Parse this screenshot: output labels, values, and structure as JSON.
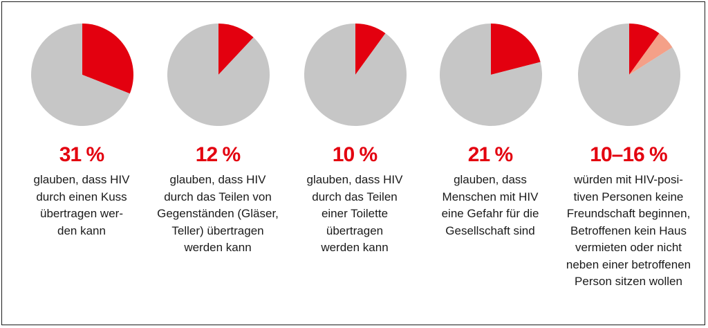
{
  "chart_data": [
    {
      "type": "pie",
      "value_label": "31 %",
      "description": "glauben, dass HIV\ndurch einen Kuss\nübertragen wer-\nden kann",
      "slices": [
        {
          "value": 31,
          "color": "#e3000f"
        },
        {
          "value": 69,
          "color": "#c6c6c6"
        }
      ]
    },
    {
      "type": "pie",
      "value_label": "12 %",
      "description": "glauben, dass HIV\ndurch das Teilen von\nGegenständen (Gläser,\nTeller) übertragen\nwerden kann",
      "slices": [
        {
          "value": 12,
          "color": "#e3000f"
        },
        {
          "value": 88,
          "color": "#c6c6c6"
        }
      ]
    },
    {
      "type": "pie",
      "value_label": "10 %",
      "description": "glauben, dass HIV\ndurch das Teilen\neiner Toilette\nübertragen\nwerden kann",
      "slices": [
        {
          "value": 10,
          "color": "#e3000f"
        },
        {
          "value": 90,
          "color": "#c6c6c6"
        }
      ]
    },
    {
      "type": "pie",
      "value_label": "21 %",
      "description": "glauben, dass\nMenschen mit HIV\neine Gefahr für die\nGesellschaft sind",
      "slices": [
        {
          "value": 21,
          "color": "#e3000f"
        },
        {
          "value": 79,
          "color": "#c6c6c6"
        }
      ]
    },
    {
      "type": "pie",
      "value_label": "10–16 %",
      "description": "würden mit HIV-posi-\ntiven Personen keine\nFreundschaft beginnen,\nBetroffenen kein Haus\nvermieten oder nicht\nneben einer betroffenen\nPerson sitzen wollen",
      "slices": [
        {
          "value": 10,
          "color": "#e3000f"
        },
        {
          "value": 6,
          "color": "#f4a088"
        },
        {
          "value": 84,
          "color": "#c6c6c6"
        }
      ]
    }
  ]
}
